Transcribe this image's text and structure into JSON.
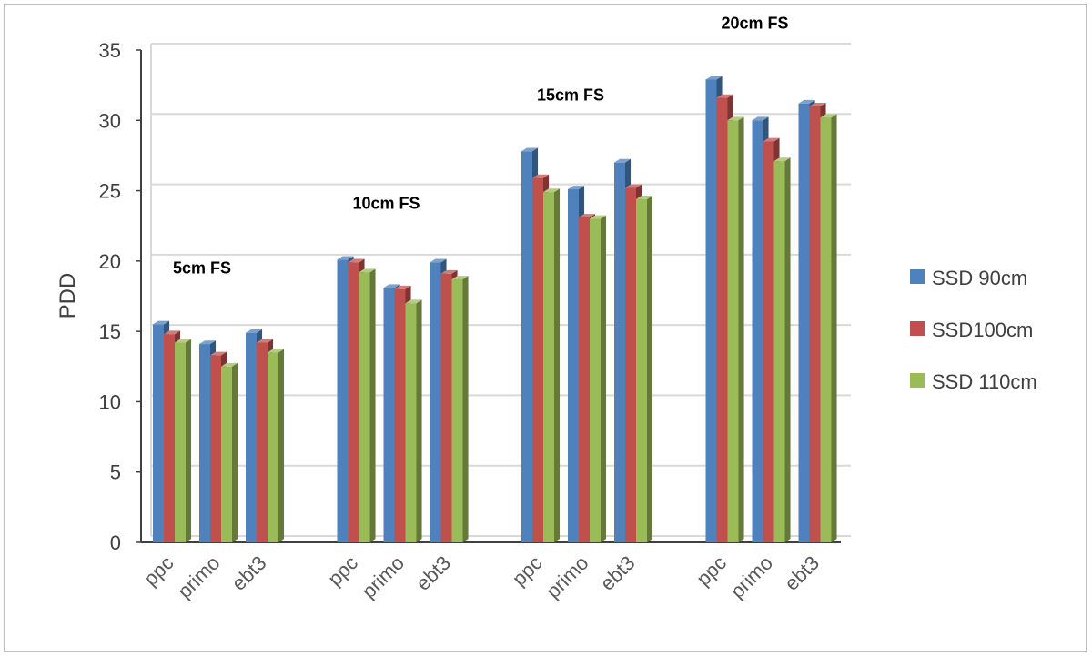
{
  "chart_data": {
    "type": "bar",
    "ylabel": "PDD",
    "ylim": [
      0,
      35
    ],
    "yticks": [
      "0",
      "5",
      "10",
      "15",
      "20",
      "25",
      "30",
      "35"
    ],
    "grid": true,
    "legend_position": "right",
    "groups": [
      {
        "label": "5cm FS",
        "categories": [
          "ppc",
          "primo",
          "ebt3"
        ]
      },
      {
        "label": "10cm FS",
        "categories": [
          "ppc",
          "primo",
          "ebt3"
        ]
      },
      {
        "label": "15cm FS",
        "categories": [
          "ppc",
          "primo",
          "ebt3"
        ]
      },
      {
        "label": "20cm FS",
        "categories": [
          "ppc",
          "primo",
          "ebt3"
        ]
      }
    ],
    "series": [
      {
        "name": "SSD 90cm",
        "color": "#4f81bd",
        "values": [
          15.5,
          14.1,
          14.9,
          20.1,
          18.1,
          19.9,
          27.8,
          25.1,
          27.0,
          32.9,
          30.0,
          31.2
        ]
      },
      {
        "name": "SSD100cm",
        "color": "#c0504d",
        "values": [
          14.8,
          13.3,
          14.2,
          19.9,
          18.0,
          19.1,
          25.9,
          23.1,
          25.2,
          31.6,
          28.5,
          31.0
        ]
      },
      {
        "name": "SSD 110cm",
        "color": "#9bbb59",
        "values": [
          14.2,
          12.5,
          13.5,
          19.2,
          17.0,
          18.7,
          24.9,
          23.0,
          24.4,
          30.0,
          27.1,
          30.2
        ]
      }
    ]
  }
}
